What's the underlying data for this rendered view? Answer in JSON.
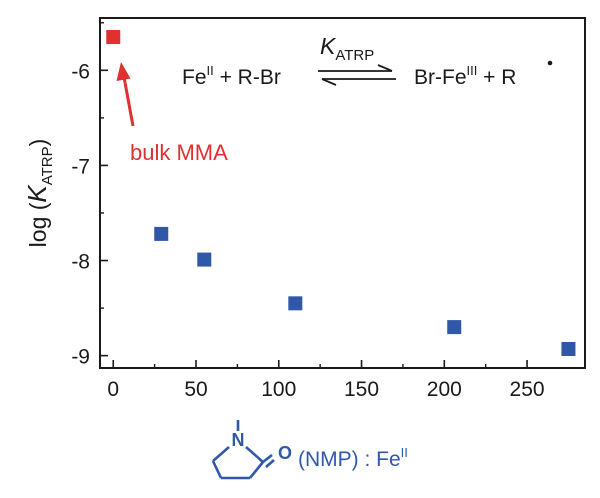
{
  "chart_data": {
    "type": "scatter",
    "x": [
      29,
      55,
      110,
      206,
      275
    ],
    "y": [
      -7.72,
      -7.99,
      -8.45,
      -8.7,
      -8.93
    ],
    "highlight_point": {
      "x": 0,
      "y": -5.65,
      "label": "bulk MMA",
      "color": "#e03030"
    },
    "series_color": "#2f58a8",
    "xticks": [
      "0",
      "50",
      "100",
      "150",
      "200",
      "250"
    ],
    "yticks": [
      "-6",
      "-7",
      "-8",
      "-9"
    ],
    "xlim": [
      -8,
      285
    ],
    "ylim": [
      -9.13,
      -5.45
    ],
    "ylabel": {
      "prefix": "log (",
      "var": "K",
      "sub": "ATRP",
      "suffix": ")"
    },
    "xlabel": {
      "text": "(NMP) : Fe",
      "sup": "II",
      "molecule": {
        "n": "N",
        "o": "O"
      }
    },
    "equation": {
      "k_label": "K",
      "k_sub": "ATRP",
      "left": "Fe",
      "left_sup": "II",
      "left_rest": " + R-Br",
      "right": "Br-Fe",
      "right_sup": "III",
      "right_rest": " + R"
    }
  }
}
